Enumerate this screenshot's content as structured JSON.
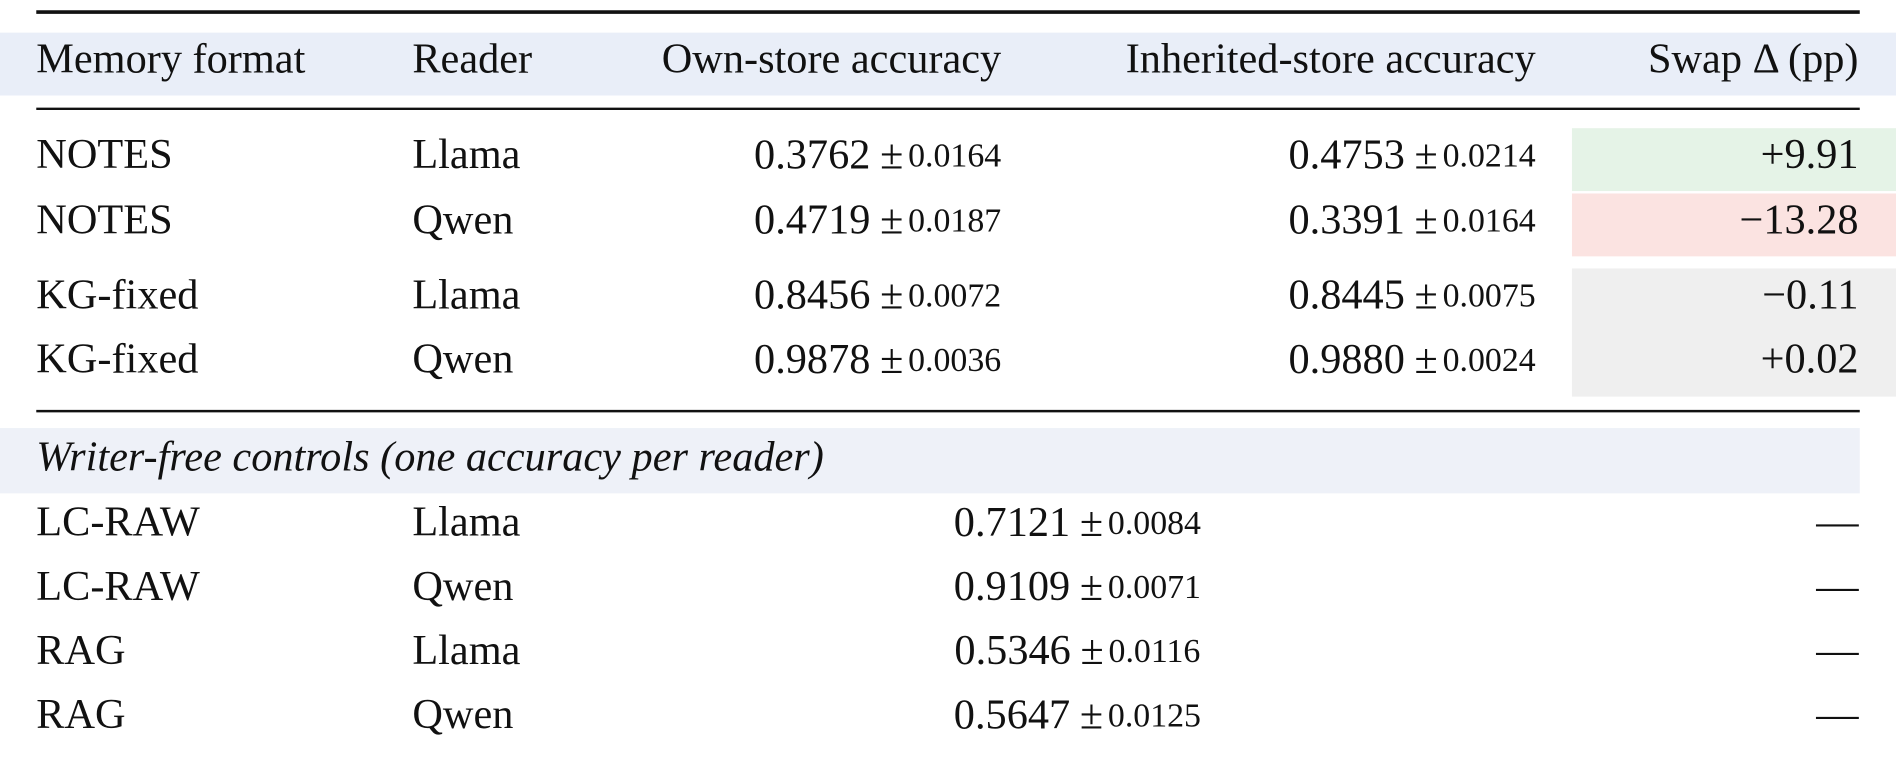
{
  "table": {
    "header": [
      "Memory format",
      "Reader",
      "Own-store accuracy",
      "Inherited-store accuracy",
      "Swap Δ (pp)"
    ],
    "plus_minus": "±",
    "rows": [
      {
        "format": "NOTES",
        "reader": "Llama",
        "own": {
          "mean": "0.3762",
          "sd": "0.0164"
        },
        "inherited": {
          "mean": "0.4753",
          "sd": "0.0214"
        },
        "swap": "+9.91"
      },
      {
        "format": "NOTES",
        "reader": "Qwen",
        "own": {
          "mean": "0.4719",
          "sd": "0.0187"
        },
        "inherited": {
          "mean": "0.3391",
          "sd": "0.0164"
        },
        "swap": "−13.28"
      },
      {
        "format": "KG-fixed",
        "reader": "Llama",
        "own": {
          "mean": "0.8456",
          "sd": "0.0072"
        },
        "inherited": {
          "mean": "0.8445",
          "sd": "0.0075"
        },
        "swap": "−0.11"
      },
      {
        "format": "KG-fixed",
        "reader": "Qwen",
        "own": {
          "mean": "0.9878",
          "sd": "0.0036"
        },
        "inherited": {
          "mean": "0.9880",
          "sd": "0.0024"
        },
        "swap": "+0.02"
      }
    ],
    "section": "Writer-free controls (one accuracy per reader)",
    "control_rows": [
      {
        "format": "LC-RAW",
        "reader": "Llama",
        "accuracy": {
          "mean": "0.7121",
          "sd": "0.0084"
        },
        "swap": "—"
      },
      {
        "format": "LC-RAW",
        "reader": "Qwen",
        "accuracy": {
          "mean": "0.9109",
          "sd": "0.0071"
        },
        "swap": "—"
      },
      {
        "format": "RAG",
        "reader": "Llama",
        "accuracy": {
          "mean": "0.5346",
          "sd": "0.0116"
        },
        "swap": "—"
      },
      {
        "format": "RAG",
        "reader": "Qwen",
        "accuracy": {
          "mean": "0.5647",
          "sd": "0.0125"
        },
        "swap": "—"
      }
    ]
  }
}
